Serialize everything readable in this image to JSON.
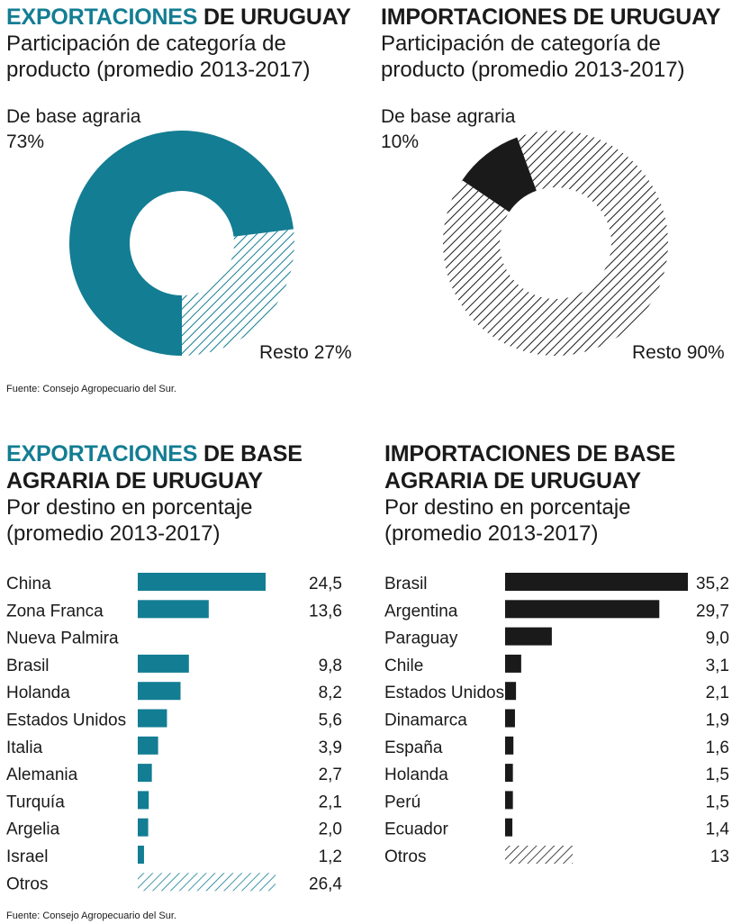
{
  "colors": {
    "teal": "#137d93",
    "black": "#1a1a1a",
    "hatch_teal": "#137d93",
    "hatch_black": "#1a1a1a"
  },
  "top_left": {
    "title_accent": "EXPORTACIONES",
    "title_rest": " DE URUGUAY",
    "subtitle_line1": "Participación de categoría de",
    "subtitle_line2": "producto (promedio 2013-2017)",
    "label_main_name": "De base agraria",
    "label_main_value": "73%",
    "label_rest": "Resto 27%"
  },
  "top_right": {
    "title": "IMPORTACIONES DE URUGUAY",
    "subtitle_line1": "Participación de categoría de",
    "subtitle_line2": "producto (promedio 2013-2017)",
    "label_main_name": "De base agraria",
    "label_main_value": "10%",
    "label_rest": "Resto 90%"
  },
  "source_top": "Fuente: Consejo Agropecuario del Sur.",
  "bottom_left": {
    "title_line1_accent": "EXPORTACIONES",
    "title_line1_rest": " DE BASE",
    "title_line2": "AGRARIA DE URUGUAY",
    "subtitle_line1": "Por destino en porcentaje",
    "subtitle_line2": "(promedio 2013-2017)"
  },
  "bottom_right": {
    "title_line1": "IMPORTACIONES DE BASE",
    "title_line2": "AGRARIA DE URUGUAY",
    "subtitle_line1": "Por destino en porcentaje",
    "subtitle_line2": "(promedio 2013-2017)"
  },
  "source_bottom": "Fuente: Consejo Agropecuario del Sur.",
  "chart_data": [
    {
      "type": "pie",
      "title": "EXPORTACIONES DE URUGUAY",
      "subtitle": "Participación de categoría de producto (promedio 2013-2017)",
      "categories": [
        "De base agraria",
        "Resto"
      ],
      "values": [
        73,
        27
      ],
      "style": "donut"
    },
    {
      "type": "pie",
      "title": "IMPORTACIONES DE URUGUAY",
      "subtitle": "Participación de categoría de producto (promedio 2013-2017)",
      "categories": [
        "De base agraria",
        "Resto"
      ],
      "values": [
        10,
        90
      ],
      "style": "donut"
    },
    {
      "type": "bar",
      "orientation": "horizontal",
      "title": "EXPORTACIONES DE BASE AGRARIA DE URUGUAY",
      "subtitle": "Por destino en porcentaje (promedio 2013-2017)",
      "categories": [
        "China",
        "Zona Franca",
        "Nueva Palmira",
        "Brasil",
        "Holanda",
        "Estados Unidos",
        "Italia",
        "Alemania",
        "Turquía",
        "Argelia",
        "Israel",
        "Otros"
      ],
      "values": [
        24.5,
        13.6,
        null,
        9.8,
        8.2,
        5.6,
        3.9,
        2.7,
        2.1,
        2.0,
        1.2,
        26.4
      ],
      "value_labels": [
        "24,5",
        "13,6",
        "",
        "9,8",
        "8,2",
        "5,6",
        "3,9",
        "2,7",
        "2,1",
        "2,0",
        "1,2",
        "26,4"
      ],
      "hatched": [
        "Otros"
      ]
    },
    {
      "type": "bar",
      "orientation": "horizontal",
      "title": "IMPORTACIONES DE BASE AGRARIA DE URUGUAY",
      "subtitle": "Por destino en porcentaje (promedio 2013-2017)",
      "categories": [
        "Brasil",
        "Argentina",
        "Paraguay",
        "Chile",
        "Estados Unidos",
        "Dinamarca",
        "España",
        "Holanda",
        "Perú",
        "Ecuador",
        "Otros"
      ],
      "values": [
        35.2,
        29.7,
        9.0,
        3.1,
        2.1,
        1.9,
        1.6,
        1.5,
        1.5,
        1.4,
        13
      ],
      "value_labels": [
        "35,2",
        "29,7",
        "9,0",
        "3,1",
        "2,1",
        "1,9",
        "1,6",
        "1,5",
        "1,5",
        "1,4",
        "13"
      ],
      "hatched": [
        "Otros"
      ]
    }
  ]
}
